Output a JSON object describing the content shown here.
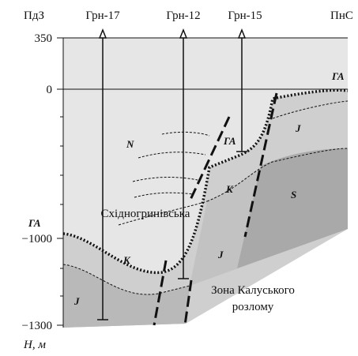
{
  "header": {
    "left": "ПдЗ",
    "right": "ПнС"
  },
  "wells": [
    {
      "label": "Грн-17"
    },
    {
      "label": "Грн-12"
    },
    {
      "label": "Грн-15"
    }
  ],
  "axis": {
    "label": "H, м",
    "ticks": [
      "350",
      "0",
      "−1000",
      "−1300"
    ]
  },
  "horizons": [
    "ГА",
    "ГА",
    "ГА"
  ],
  "strata": [
    "N",
    "J",
    "K",
    "S",
    "J",
    "K",
    "J"
  ],
  "places": {
    "field": "Східногринівська",
    "fault": [
      "Зона Калуського",
      "розлому"
    ]
  }
}
